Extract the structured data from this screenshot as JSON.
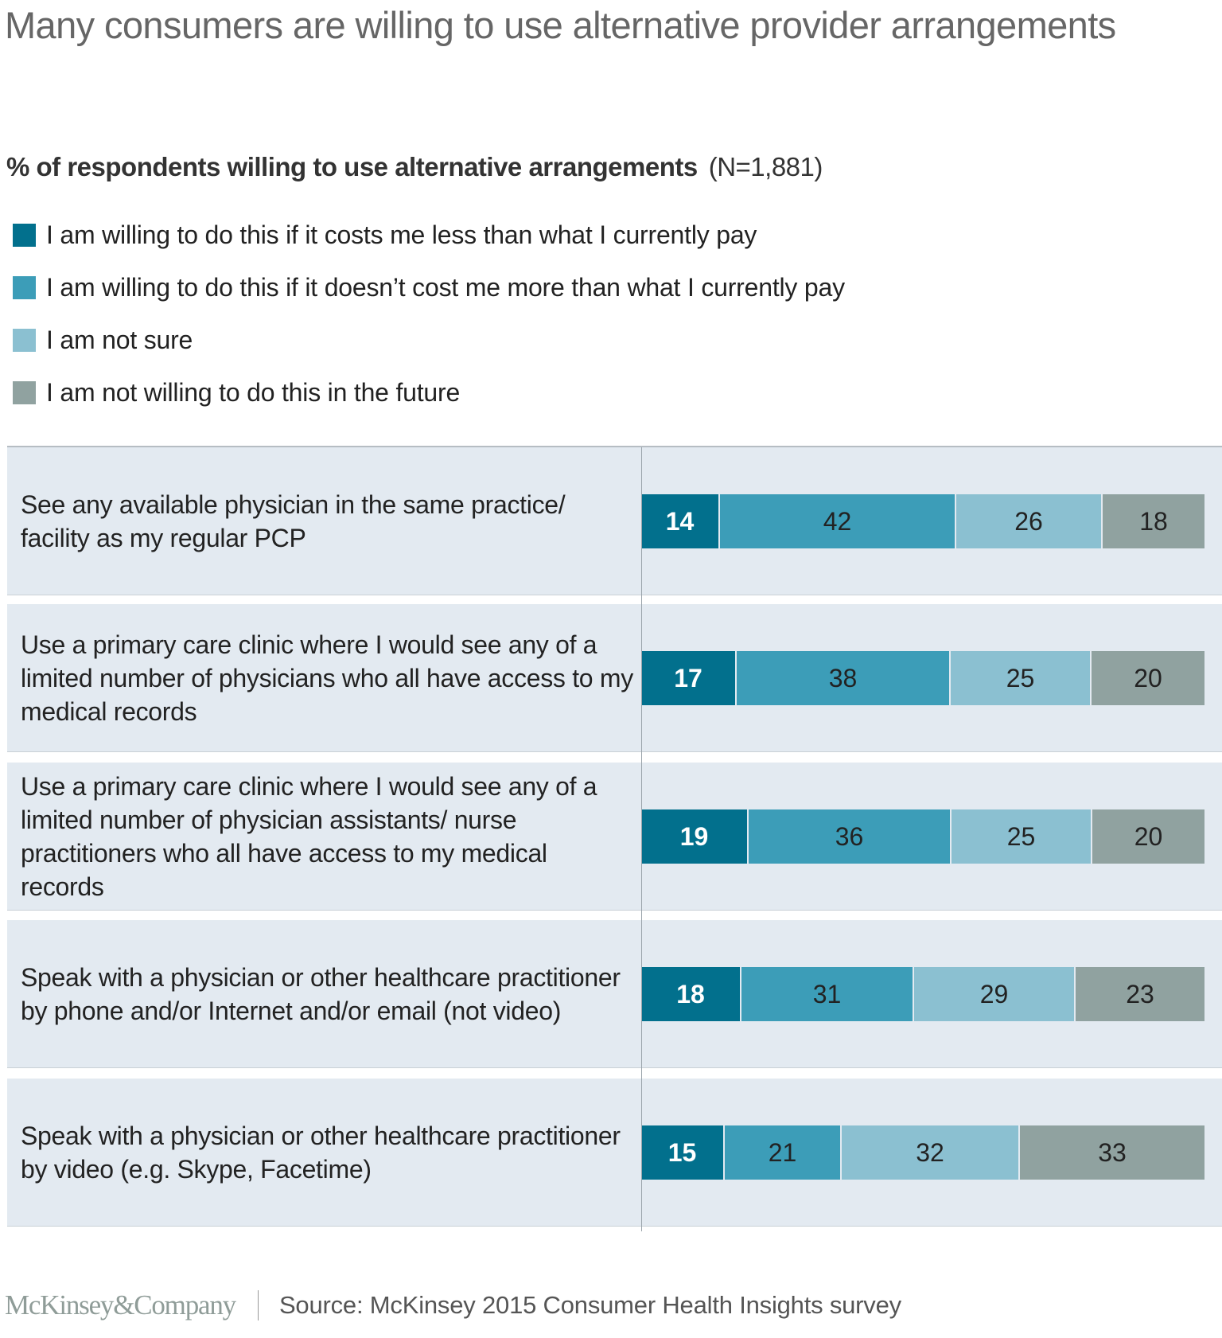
{
  "header": {
    "title": "Many consumers are willing to use alternative provider arrangements",
    "subtitle_bold": "% of respondents willing to use alternative arrangements",
    "subtitle_n": "(N=1,881)"
  },
  "legend": [
    {
      "label": "I am willing to do this if it costs me less than what I currently pay",
      "color": "#02708d"
    },
    {
      "label": "I am willing to do this if it doesn’t cost me more than what I currently pay",
      "color": "#3c9db8"
    },
    {
      "label": "I am not sure",
      "color": "#8bc0d1"
    },
    {
      "label": "I am not willing to do this in the future",
      "color": "#90a2a0"
    }
  ],
  "chart_data": {
    "type": "bar",
    "orientation": "horizontal",
    "stacked": true,
    "title": "% of respondents willing to use alternative arrangements",
    "sample_size": "N=1,881",
    "categories": [
      "See any available physician in the same practice/ facility as my regular PCP",
      "Use a primary care clinic where I would see any of a limited number of physicians who all have access to my medical records",
      "Use a primary care clinic where I would see any of a limited number of physician assistants/ nurse practitioners who all have access to my medical records",
      "Speak with a physician or other healthcare practitioner by phone and/or Internet and/or email (not video)",
      "Speak with a physician or other healthcare practitioner by video (e.g. Skype, Facetime)"
    ],
    "series": [
      {
        "name": "I am willing to do this if it costs me less than what I currently pay",
        "values": [
          14,
          17,
          19,
          18,
          15
        ]
      },
      {
        "name": "I am willing to do this if it doesn’t cost me more than what I currently pay",
        "values": [
          42,
          38,
          36,
          31,
          21
        ]
      },
      {
        "name": "I am not sure",
        "values": [
          26,
          25,
          25,
          29,
          32
        ]
      },
      {
        "name": "I am not willing to do this in the future",
        "values": [
          18,
          20,
          20,
          23,
          33
        ]
      }
    ],
    "xlim": [
      0,
      100
    ],
    "grid": false,
    "legend_position": "top-left",
    "data_labels": true
  },
  "footer": {
    "logo": "McKinsey&Company",
    "source": "Source: McKinsey 2015 Consumer Health Insights survey"
  }
}
